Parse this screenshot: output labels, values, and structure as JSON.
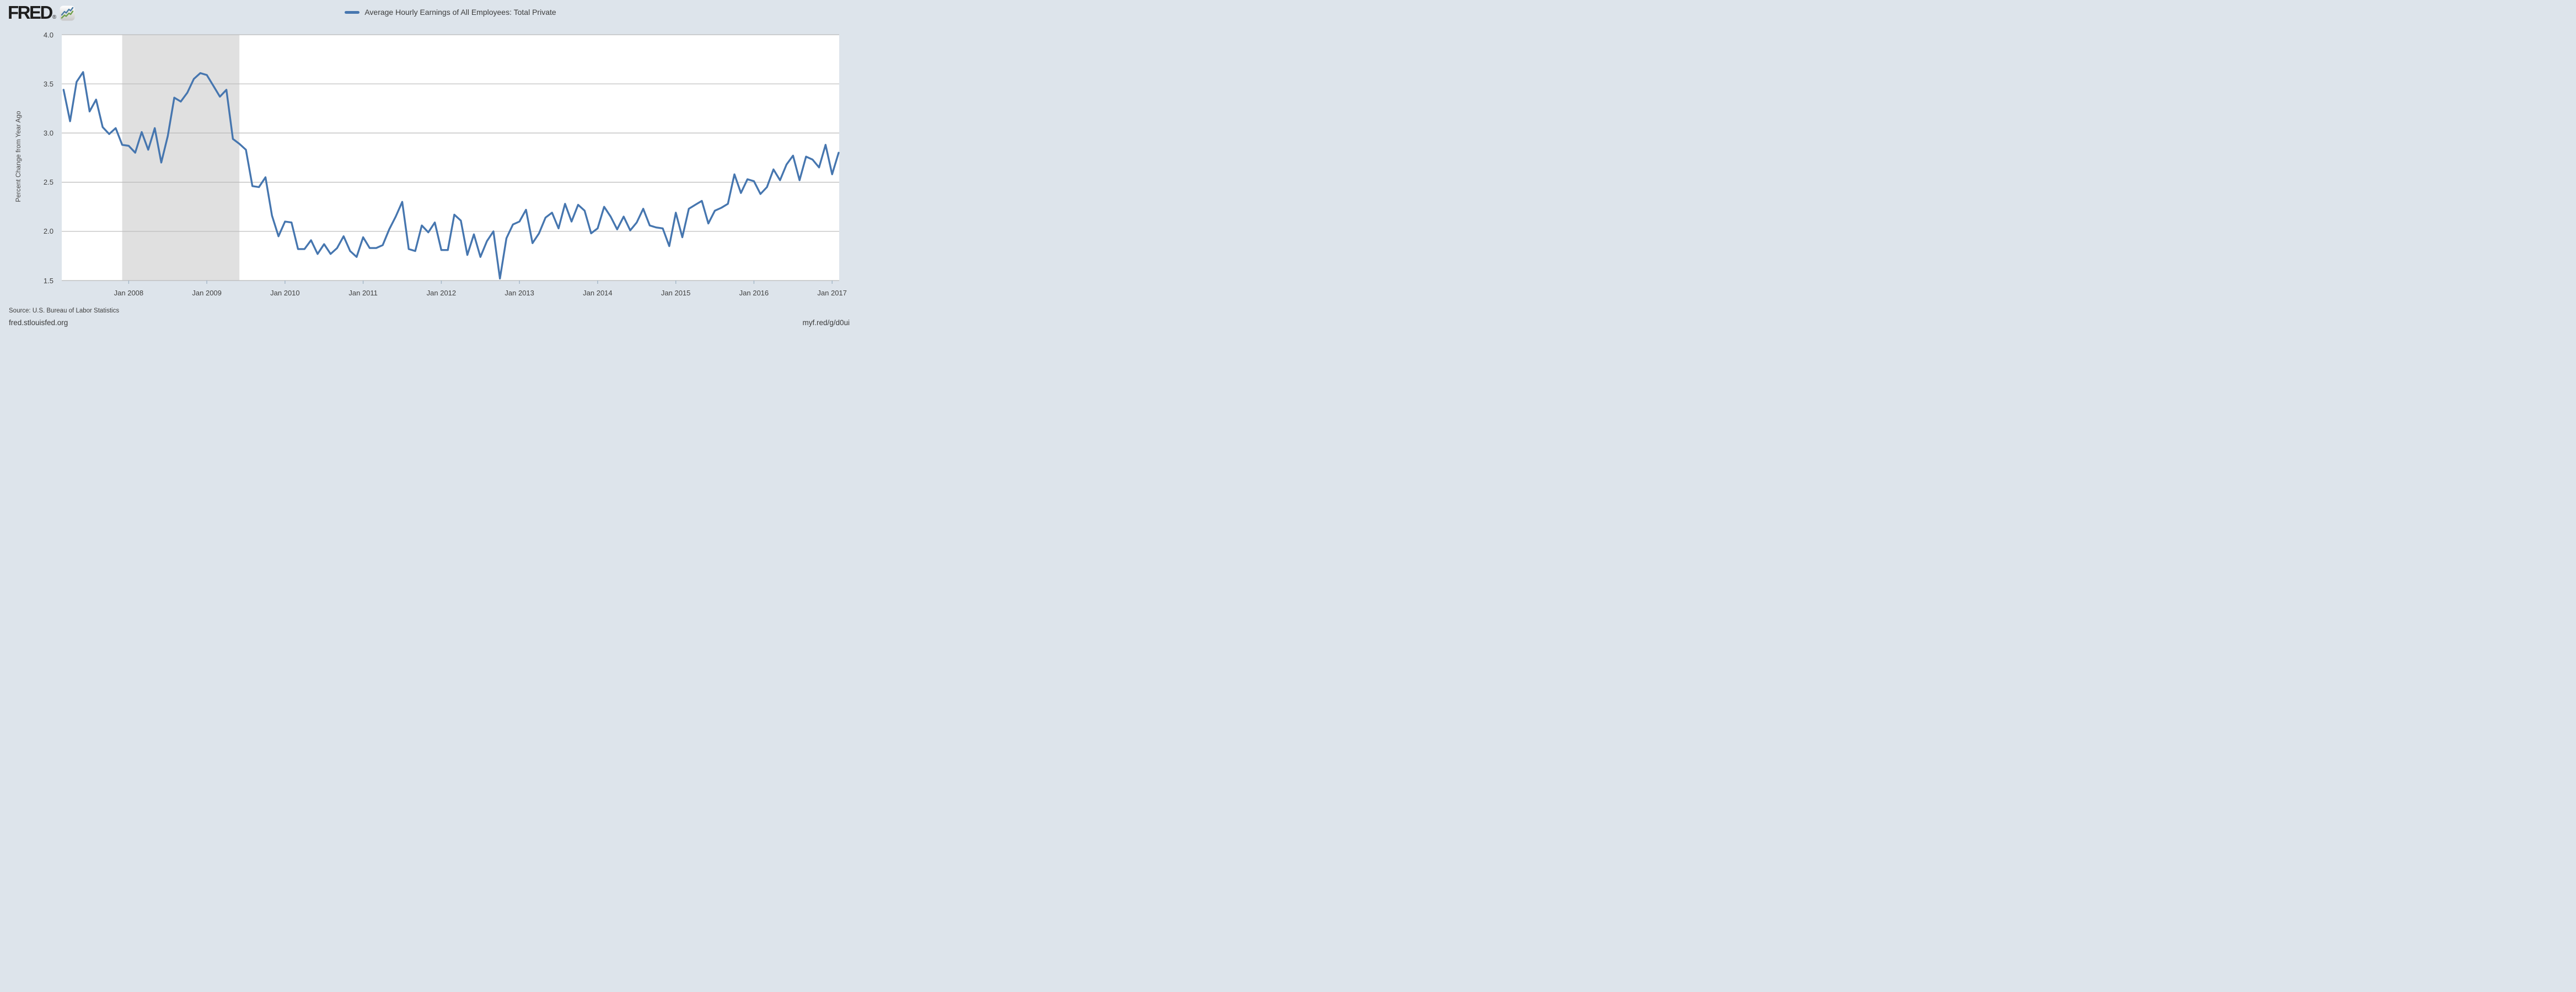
{
  "header": {
    "logo_text": "FRED",
    "registered_mark": "®"
  },
  "legend": {
    "label": "Average Hourly Earnings of All Employees: Total Private"
  },
  "y_axis": {
    "title": "Percent Change from Year Ago",
    "tick_labels": [
      "4.0",
      "3.5",
      "3.0",
      "2.5",
      "2.0",
      "1.5"
    ],
    "tick_values": [
      4.0,
      3.5,
      3.0,
      2.5,
      2.0,
      1.5
    ]
  },
  "x_axis": {
    "tick_labels": [
      "Jan 2008",
      "Jan 2009",
      "Jan 2010",
      "Jan 2011",
      "Jan 2012",
      "Jan 2013",
      "Jan 2014",
      "Jan 2015",
      "Jan 2016",
      "Jan 2017"
    ],
    "tick_dates": [
      "2008-01",
      "2009-01",
      "2010-01",
      "2011-01",
      "2012-01",
      "2013-01",
      "2014-01",
      "2015-01",
      "2016-01",
      "2017-01"
    ]
  },
  "footer": {
    "source": "Source: U.S. Bureau of Labor Statistics",
    "site": "fred.stlouisfed.org",
    "short_url": "myf.red/g/d0ui"
  },
  "colors": {
    "background": "#dde4eb",
    "plot_background": "#ffffff",
    "line": "#4676af",
    "gridline": "#b9b9b9",
    "recession_band": "#e0e0e0",
    "tick_mark": "#a3b6c6",
    "logo_blue": "#4a7ba3",
    "logo_green": "#6fa04c"
  },
  "chart_data": {
    "type": "line",
    "title": "Average Hourly Earnings of All Employees: Total Private",
    "ylabel": "Percent Change from Year Ago",
    "xlabel": "",
    "ylim": [
      1.5,
      4.0
    ],
    "grid": true,
    "legend_position": "top-center",
    "frequency": "monthly",
    "x_start": "2007-03",
    "x_end": "2017-02",
    "recession_band": {
      "start": "2007-12",
      "end": "2009-06"
    },
    "dates": [
      "2007-03",
      "2007-04",
      "2007-05",
      "2007-06",
      "2007-07",
      "2007-08",
      "2007-09",
      "2007-10",
      "2007-11",
      "2007-12",
      "2008-01",
      "2008-02",
      "2008-03",
      "2008-04",
      "2008-05",
      "2008-06",
      "2008-07",
      "2008-08",
      "2008-09",
      "2008-10",
      "2008-11",
      "2008-12",
      "2009-01",
      "2009-02",
      "2009-03",
      "2009-04",
      "2009-05",
      "2009-06",
      "2009-07",
      "2009-08",
      "2009-09",
      "2009-10",
      "2009-11",
      "2009-12",
      "2010-01",
      "2010-02",
      "2010-03",
      "2010-04",
      "2010-05",
      "2010-06",
      "2010-07",
      "2010-08",
      "2010-09",
      "2010-10",
      "2010-11",
      "2010-12",
      "2011-01",
      "2011-02",
      "2011-03",
      "2011-04",
      "2011-05",
      "2011-06",
      "2011-07",
      "2011-08",
      "2011-09",
      "2011-10",
      "2011-11",
      "2011-12",
      "2012-01",
      "2012-02",
      "2012-03",
      "2012-04",
      "2012-05",
      "2012-06",
      "2012-07",
      "2012-08",
      "2012-09",
      "2012-10",
      "2012-11",
      "2012-12",
      "2013-01",
      "2013-02",
      "2013-03",
      "2013-04",
      "2013-05",
      "2013-06",
      "2013-07",
      "2013-08",
      "2013-09",
      "2013-10",
      "2013-11",
      "2013-12",
      "2014-01",
      "2014-02",
      "2014-03",
      "2014-04",
      "2014-05",
      "2014-06",
      "2014-07",
      "2014-08",
      "2014-09",
      "2014-10",
      "2014-11",
      "2014-12",
      "2015-01",
      "2015-02",
      "2015-03",
      "2015-04",
      "2015-05",
      "2015-06",
      "2015-07",
      "2015-08",
      "2015-09",
      "2015-10",
      "2015-11",
      "2015-12",
      "2016-01",
      "2016-02",
      "2016-03",
      "2016-04",
      "2016-05",
      "2016-06",
      "2016-07",
      "2016-08",
      "2016-09",
      "2016-10",
      "2016-11",
      "2016-12",
      "2017-01",
      "2017-02"
    ],
    "values": [
      3.44,
      3.12,
      3.52,
      3.62,
      3.22,
      3.34,
      3.06,
      2.99,
      3.05,
      2.88,
      2.87,
      2.8,
      3.01,
      2.83,
      3.05,
      2.7,
      2.97,
      3.36,
      3.32,
      3.41,
      3.55,
      3.61,
      3.59,
      3.48,
      3.37,
      3.44,
      2.94,
      2.89,
      2.83,
      2.46,
      2.45,
      2.55,
      2.16,
      1.95,
      2.1,
      2.09,
      1.82,
      1.82,
      1.91,
      1.77,
      1.87,
      1.77,
      1.83,
      1.95,
      1.8,
      1.74,
      1.94,
      1.83,
      1.83,
      1.86,
      2.02,
      2.15,
      2.3,
      1.82,
      1.8,
      2.06,
      1.99,
      2.09,
      1.81,
      1.81,
      2.17,
      2.11,
      1.76,
      1.97,
      1.74,
      1.9,
      2.0,
      1.52,
      1.93,
      2.07,
      2.1,
      2.22,
      1.88,
      1.98,
      2.14,
      2.19,
      2.03,
      2.28,
      2.1,
      2.27,
      2.21,
      1.98,
      2.03,
      2.25,
      2.15,
      2.02,
      2.15,
      2.01,
      2.09,
      2.23,
      2.06,
      2.04,
      2.03,
      1.85,
      2.19,
      1.94,
      2.23,
      2.27,
      2.31,
      2.08,
      2.21,
      2.24,
      2.28,
      2.58,
      2.39,
      2.53,
      2.51,
      2.38,
      2.45,
      2.63,
      2.52,
      2.68,
      2.77,
      2.52,
      2.76,
      2.73,
      2.65,
      2.88,
      2.58,
      2.8
    ]
  }
}
